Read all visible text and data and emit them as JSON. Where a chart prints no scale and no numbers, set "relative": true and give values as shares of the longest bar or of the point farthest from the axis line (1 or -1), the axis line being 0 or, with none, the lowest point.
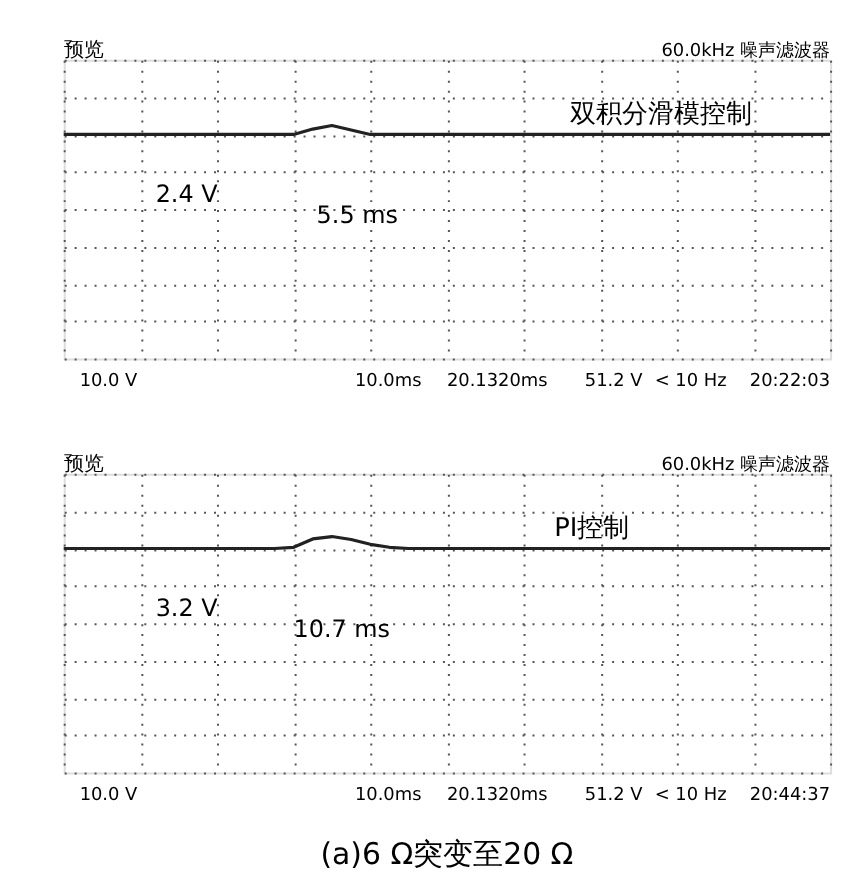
{
  "chart_data": [
    {
      "type": "line",
      "relative": true,
      "grid": true,
      "tick_labels": false,
      "categories": [
        null,
        null,
        null,
        null,
        null,
        null,
        null,
        null,
        null,
        null,
        null,
        null,
        null,
        null,
        null,
        null,
        null,
        null,
        null,
        null,
        null,
        null,
        null,
        null,
        null,
        null,
        null,
        null,
        null,
        null,
        null,
        null,
        null,
        null,
        null,
        null,
        null,
        null,
        null,
        null,
        null
      ],
      "series": [
        {
          "color": "#222222",
          "values": [
            0,
            0,
            0,
            0,
            0,
            0,
            0,
            0,
            0,
            0,
            0,
            0,
            0,
            0.6,
            1,
            0.5,
            0,
            0,
            0,
            0,
            0,
            0,
            0,
            0,
            0,
            0,
            0,
            0,
            0,
            0,
            0,
            0,
            0,
            0,
            0,
            0,
            0,
            0,
            0,
            0,
            0
          ]
        }
      ],
      "annotations": [
        "预览",
        "60.0kHz 噪声滤波器",
        "双积分滑模控制",
        "2.4 V",
        "5.5 ms",
        "10.0 V",
        "10.0ms",
        "20.1320ms",
        "51.2 V",
        "< 10 Hz",
        "20:22:03"
      ]
    },
    {
      "type": "line",
      "relative": true,
      "grid": true,
      "tick_labels": false,
      "title": "(a)6 Ω突变至20 Ω",
      "categories": [
        null,
        null,
        null,
        null,
        null,
        null,
        null,
        null,
        null,
        null,
        null,
        null,
        null,
        null,
        null,
        null,
        null,
        null,
        null,
        null,
        null,
        null,
        null,
        null,
        null,
        null,
        null,
        null,
        null,
        null,
        null,
        null,
        null,
        null,
        null,
        null,
        null,
        null,
        null,
        null,
        null
      ],
      "series": [
        {
          "color": "#222222",
          "values": [
            0,
            0,
            0,
            0,
            0,
            0,
            0,
            0,
            0,
            0,
            0,
            0,
            0.1,
            0.8,
            1,
            0.75,
            0.35,
            0.1,
            0,
            0,
            0,
            0,
            0,
            0,
            0,
            0,
            0,
            0,
            0,
            0,
            0,
            0,
            0,
            0,
            0,
            0,
            0,
            0,
            0,
            0,
            0
          ]
        }
      ],
      "annotations": [
        "预览",
        "60.0kHz 噪声滤波器",
        "PI控制",
        "3.2 V",
        "10.7 ms",
        "10.0 V",
        "10.0ms",
        "20.1320ms",
        "51.2 V",
        "< 10 Hz",
        "20:44:37"
      ]
    }
  ]
}
